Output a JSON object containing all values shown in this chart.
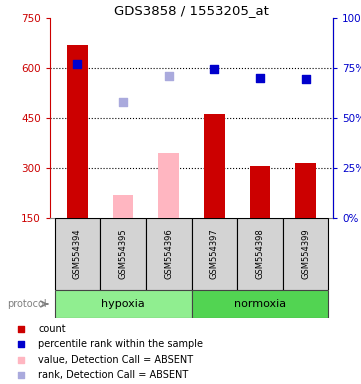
{
  "title": "GDS3858 / 1553205_at",
  "samples": [
    "GSM554394",
    "GSM554395",
    "GSM554396",
    "GSM554397",
    "GSM554398",
    "GSM554399"
  ],
  "protocol_groups": [
    {
      "label": "hypoxia",
      "indices": [
        0,
        1,
        2
      ],
      "color": "#90EE90"
    },
    {
      "label": "normoxia",
      "indices": [
        3,
        4,
        5
      ],
      "color": "#52D452"
    }
  ],
  "bar_values": [
    670,
    null,
    null,
    462,
    305,
    315
  ],
  "bar_absent_values": [
    null,
    220,
    345,
    null,
    null,
    null
  ],
  "bar_color_present": "#CC0000",
  "bar_color_absent": "#FFB6C1",
  "dot_values": [
    612,
    null,
    null,
    598,
    570,
    568
  ],
  "dot_absent_values": [
    null,
    497,
    577,
    null,
    null,
    null
  ],
  "dot_color_present": "#0000CC",
  "dot_color_absent": "#AAAADD",
  "ylim_left": [
    150,
    750
  ],
  "ylim_right": [
    0,
    100
  ],
  "yticks_left": [
    150,
    300,
    450,
    600,
    750
  ],
  "yticks_right": [
    0,
    25,
    50,
    75,
    100
  ],
  "left_axis_color": "#CC0000",
  "right_axis_color": "#0000CC",
  "dotted_line_values": [
    300,
    450,
    600
  ],
  "legend_items": [
    {
      "color": "#CC0000",
      "label": "count"
    },
    {
      "color": "#0000CC",
      "label": "percentile rank within the sample"
    },
    {
      "color": "#FFB6C1",
      "label": "value, Detection Call = ABSENT"
    },
    {
      "color": "#AAAADD",
      "label": "rank, Detection Call = ABSENT"
    }
  ],
  "bar_width": 0.45,
  "bar_bottom": 150,
  "sample_box_color": "#D3D3D3",
  "protocol_label_color": "#808080"
}
